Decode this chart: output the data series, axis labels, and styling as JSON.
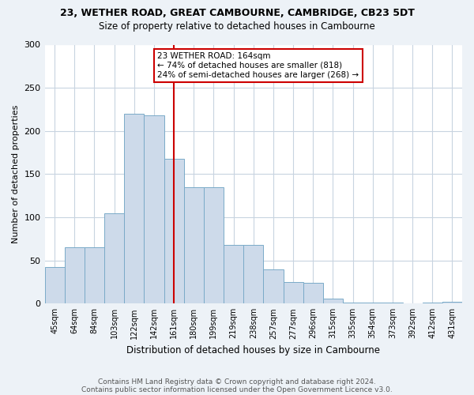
{
  "title": "23, WETHER ROAD, GREAT CAMBOURNE, CAMBRIDGE, CB23 5DT",
  "subtitle": "Size of property relative to detached houses in Cambourne",
  "xlabel": "Distribution of detached houses by size in Cambourne",
  "ylabel": "Number of detached properties",
  "bar_labels": [
    "45sqm",
    "64sqm",
    "84sqm",
    "103sqm",
    "122sqm",
    "142sqm",
    "161sqm",
    "180sqm",
    "199sqm",
    "219sqm",
    "238sqm",
    "257sqm",
    "277sqm",
    "296sqm",
    "315sqm",
    "335sqm",
    "354sqm",
    "373sqm",
    "392sqm",
    "412sqm",
    "431sqm"
  ],
  "bar_values": [
    42,
    65,
    65,
    105,
    220,
    218,
    168,
    135,
    135,
    68,
    68,
    40,
    25,
    24,
    6,
    1,
    1,
    1,
    0,
    1,
    2
  ],
  "bar_color": "#cddaea",
  "bar_edge_color": "#7aaac8",
  "vline_x": 6,
  "annotation_text": "23 WETHER ROAD: 164sqm\n← 74% of detached houses are smaller (818)\n24% of semi-detached houses are larger (268) →",
  "annotation_box_color": "#ffffff",
  "annotation_box_edge_color": "#cc0000",
  "vline_color": "#cc0000",
  "footer_line1": "Contains HM Land Registry data © Crown copyright and database right 2024.",
  "footer_line2": "Contains public sector information licensed under the Open Government Licence v3.0.",
  "ylim": [
    0,
    300
  ],
  "background_color": "#edf2f7",
  "plot_bg_color": "#ffffff",
  "grid_color": "#c8d4e0",
  "title_fontsize": 9,
  "subtitle_fontsize": 8.5,
  "ylabel_fontsize": 8,
  "xlabel_fontsize": 8.5,
  "tick_fontsize": 7,
  "footer_fontsize": 6.5
}
